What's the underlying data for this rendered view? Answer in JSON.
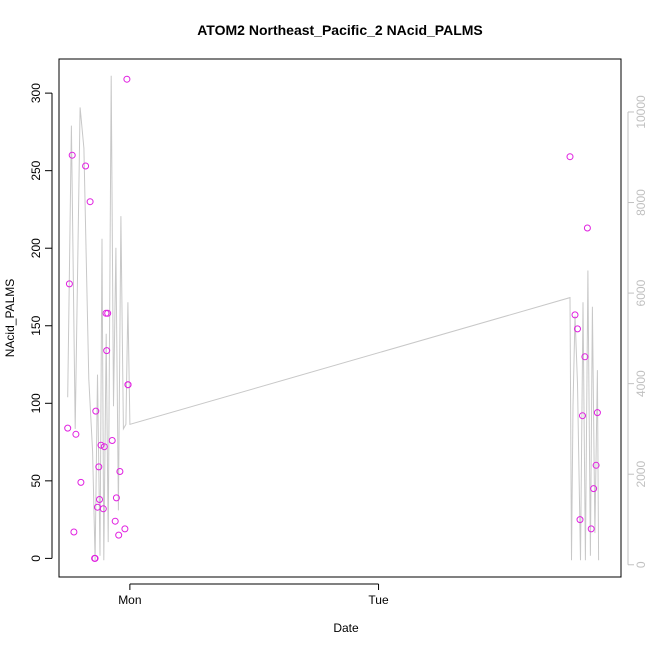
{
  "chart_data": {
    "type": "scatter",
    "title": "ATOM2 Northeast_Pacific_2 NAcid_PALMS",
    "xlabel": "Date",
    "ylabel": "NAcid_PALMS",
    "x_tick_labels": [
      "Mon",
      "Tue"
    ],
    "x_tick_positions_days": [
      0,
      1
    ],
    "xlim_days": [
      -0.285,
      1.975
    ],
    "ylim": [
      -12,
      322
    ],
    "y_ticks": [
      0,
      50,
      100,
      150,
      200,
      250,
      300
    ],
    "y2lim": [
      -270,
      11170
    ],
    "y2_ticks": [
      0,
      2000,
      4000,
      6000,
      8000,
      10000
    ],
    "grid": false,
    "colors": {
      "points": "#e020e0",
      "line": "#c8c8c8",
      "axis": "#000000",
      "right_axis": "#c0c0c0"
    },
    "series": [
      {
        "kind": "points",
        "x_days": [
          -0.25,
          -0.243,
          -0.232,
          -0.217,
          -0.225,
          -0.197,
          -0.178,
          -0.16,
          -0.142,
          -0.14,
          -0.137,
          -0.13,
          -0.125,
          -0.122,
          -0.116,
          -0.107,
          -0.103,
          -0.096,
          -0.093,
          -0.089,
          -0.071,
          -0.059,
          -0.054,
          -0.045,
          -0.04,
          -0.02,
          -0.012,
          -0.008,
          -0.007,
          1.77,
          1.79,
          1.8,
          1.81,
          1.82,
          1.83,
          1.84,
          1.855,
          1.865,
          1.875,
          1.88
        ],
        "y": [
          84,
          177,
          260,
          80,
          17,
          49,
          253,
          230,
          0,
          0,
          95,
          33,
          59,
          38,
          73,
          32,
          72,
          158,
          134,
          158,
          76,
          24,
          39,
          15,
          56,
          19,
          309,
          112,
          112,
          259,
          157,
          148,
          25,
          92,
          130,
          213,
          19,
          45,
          60,
          94
        ]
      },
      {
        "kind": "line",
        "x_days": [
          -0.25,
          -0.235,
          -0.22,
          -0.2,
          -0.185,
          -0.165,
          -0.15,
          -0.14,
          -0.13,
          -0.12,
          -0.112,
          -0.105,
          -0.095,
          -0.087,
          -0.075,
          -0.066,
          -0.056,
          -0.046,
          -0.036,
          -0.026,
          -0.016,
          -0.008,
          0.0,
          1.77,
          1.776,
          1.782,
          1.79,
          1.8,
          1.812,
          1.822,
          1.832,
          1.842,
          1.852,
          1.86,
          1.87,
          1.88,
          1.885
        ],
        "y2": [
          3700,
          9700,
          3000,
          10100,
          9200,
          4100,
          2500,
          100,
          4200,
          200,
          7200,
          100,
          5100,
          500,
          10800,
          3500,
          7000,
          1200,
          7700,
          3000,
          3100,
          5800,
          3100,
          5900,
          100,
          3500,
          5500,
          4000,
          100,
          5800,
          100,
          6500,
          200,
          5700,
          700,
          4300,
          100
        ]
      }
    ]
  }
}
